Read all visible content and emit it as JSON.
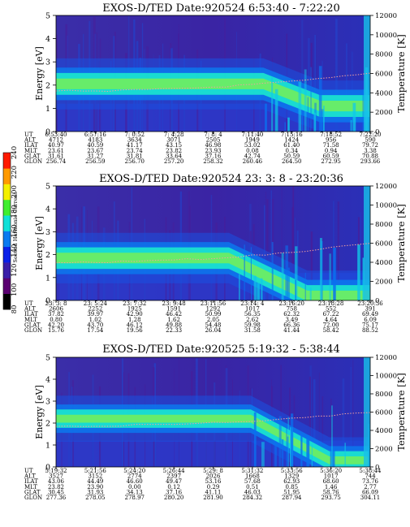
{
  "chart_data": [
    {
      "type": "heatmap",
      "title": "EXOS-D/TED   Date:920524  6:53:40 - 7:22:20",
      "ylabel": "Energy [eV]",
      "y2label": "Temperature [K]",
      "ylim": [
        0,
        5
      ],
      "y2lim": [
        0,
        12000
      ],
      "yticks": [
        "0",
        "1",
        "2",
        "3",
        "4",
        "5"
      ],
      "y2ticks": [
        "0",
        "2000",
        "4000",
        "6000",
        "8000",
        "10000",
        "12000"
      ],
      "band_eV": [
        1.7,
        2.4
      ],
      "band_end_fraction": 0.66,
      "drop_start_fraction": 0.66,
      "drop_end_fraction": 0.84,
      "drop_end_eV": 1.1,
      "temperature_start_K": 4200,
      "temperature_end_K": 6000,
      "row_labels": [
        "UT",
        "ALT",
        "ILAT",
        "MLT",
        "GLAT",
        "GLON"
      ],
      "columns": [
        [
          "6:53:40",
          "4712",
          "40.97",
          "23.61",
          "31.61",
          "256.74"
        ],
        [
          "6:57:16",
          "4183",
          "40.59",
          "23.67",
          "31.27",
          "256.59"
        ],
        [
          "7: 0:52",
          "3634",
          "41.17",
          "23.74",
          "31.81",
          "256.70"
        ],
        [
          "7: 4:28",
          "3071",
          "43.15",
          "23.82",
          "33.64",
          "257.20"
        ],
        [
          "7: 8: 4",
          "2505",
          "46.98",
          "23.93",
          "37.16",
          "258.32"
        ],
        [
          "7:11:40",
          "1949",
          "53.02",
          "0.08",
          "42.74",
          "260.46"
        ],
        [
          "7:15:16",
          "1424",
          "61.40",
          "0.34",
          "50.59",
          "264.50"
        ],
        [
          "7:18:52",
          "956",
          "71.58",
          "0.94",
          "60.59",
          "272.95"
        ],
        [
          "7:22:20",
          "590",
          "79.72",
          "3.38",
          "70.88",
          "293.66"
        ]
      ]
    },
    {
      "type": "heatmap",
      "title": "EXOS-D/TED   Date:920524  23: 3: 8 - 23:20:36",
      "ylabel": "Energy [eV]",
      "y2label": "Temperature [K]",
      "ylim": [
        0,
        5
      ],
      "y2lim": [
        0,
        12000
      ],
      "yticks": [
        "0",
        "1",
        "2",
        "3",
        "4",
        "5"
      ],
      "y2ticks": [
        "0",
        "2000",
        "4000",
        "6000",
        "8000",
        "10000",
        "12000"
      ],
      "band_eV": [
        1.5,
        2.2
      ],
      "band_end_fraction": 0.55,
      "drop_start_fraction": 0.55,
      "drop_end_fraction": 0.8,
      "drop_end_eV": 0.2,
      "temperature_start_K": 4000,
      "temperature_end_K": 6000,
      "row_labels": [
        "UT",
        "ALT",
        "ILAT",
        "MLT",
        "GLAT",
        "GLON"
      ],
      "columns": [
        [
          "23: 3: 8",
          "2606",
          "37.82",
          "0.80",
          "42.20",
          "15.76"
        ],
        [
          "23: 5:24",
          "2252",
          "39.97",
          "1.02",
          "43.70",
          "17.54"
        ],
        [
          "23: 7:32",
          "1925",
          "42.90",
          "1.28",
          "46.12",
          "19.56"
        ],
        [
          "23: 9:48",
          "1591",
          "46.42",
          "1.62",
          "49.88",
          "22.33"
        ],
        [
          "23:11:56",
          "1292",
          "50.99",
          "2.05",
          "54.48",
          "26.04"
        ],
        [
          "23:14: 4",
          "1017",
          "56.35",
          "2.62",
          "59.98",
          "31.58"
        ],
        [
          "23:16:20",
          "758",
          "62.32",
          "3.49",
          "66.36",
          "41.44"
        ],
        [
          "23:18:28",
          "552",
          "67.22",
          "4.64",
          "72.00",
          "58.42"
        ],
        [
          "23:20:36",
          "391",
          "69.49",
          "6.09",
          "75.17",
          "88.52"
        ]
      ]
    },
    {
      "type": "heatmap",
      "title": "EXOS-D/TED   Date:920525  5:19:32 - 5:38:44",
      "ylabel": "Energy [eV]",
      "y2label": "Temperature [K]",
      "ylim": [
        0,
        5
      ],
      "y2lim": [
        0,
        12000
      ],
      "yticks": [
        "0",
        "1",
        "2",
        "3",
        "4",
        "5"
      ],
      "y2ticks": [
        "0",
        "2000",
        "4000",
        "6000",
        "8000",
        "10000",
        "12000"
      ],
      "band_eV": [
        1.9,
        2.5
      ],
      "band_end_fraction": 0.62,
      "drop_start_fraction": 0.62,
      "drop_end_fraction": 0.87,
      "drop_end_eV": 0.3,
      "temperature_start_K": 4500,
      "temperature_end_K": 6000,
      "row_labels": [
        "UT",
        "ALT",
        "ILAT",
        "MLT",
        "GLAT",
        "GLON"
      ],
      "columns": [
        [
          "5:19:32",
          "3527",
          "43.06",
          "23.82",
          "30.45",
          "277.36"
        ],
        [
          "5:21:56",
          "3152",
          "44.49",
          "23.90",
          "31.93",
          "278.05"
        ],
        [
          "5:24:20",
          "2774",
          "46.60",
          "0.00",
          "34.13",
          "278.97"
        ],
        [
          "5:26:44",
          "2397",
          "49.47",
          "0.12",
          "37.16",
          "280.20"
        ],
        [
          "5:29: 8",
          "2026",
          "53.16",
          "0.29",
          "41.11",
          "281.90"
        ],
        [
          "5:31:32",
          "1668",
          "57.68",
          "0.51",
          "46.03",
          "284.32"
        ],
        [
          "5:33:56",
          "1329",
          "62.93",
          "0.85",
          "51.95",
          "287.94"
        ],
        [
          "5:36:20",
          "1017",
          "68.60",
          "1.46",
          "58.76",
          "293.75"
        ],
        [
          "5:38:44",
          "744",
          "73.76",
          "2.77",
          "66.09",
          "304.11"
        ]
      ]
    }
  ],
  "colorbar": {
    "title": "Second Harmonic Current",
    "min": 80,
    "max": 240,
    "ticks": [
      "80",
      "100",
      "120",
      "140",
      "160",
      "180",
      "200",
      "220",
      "240"
    ],
    "colors": [
      "#000000",
      "#5a0070",
      "#3a1ea8",
      "#0a20e8",
      "#0a7af0",
      "#10e0d8",
      "#40ee30",
      "#f4f000",
      "#ff9a00",
      "#ff1a00"
    ]
  }
}
